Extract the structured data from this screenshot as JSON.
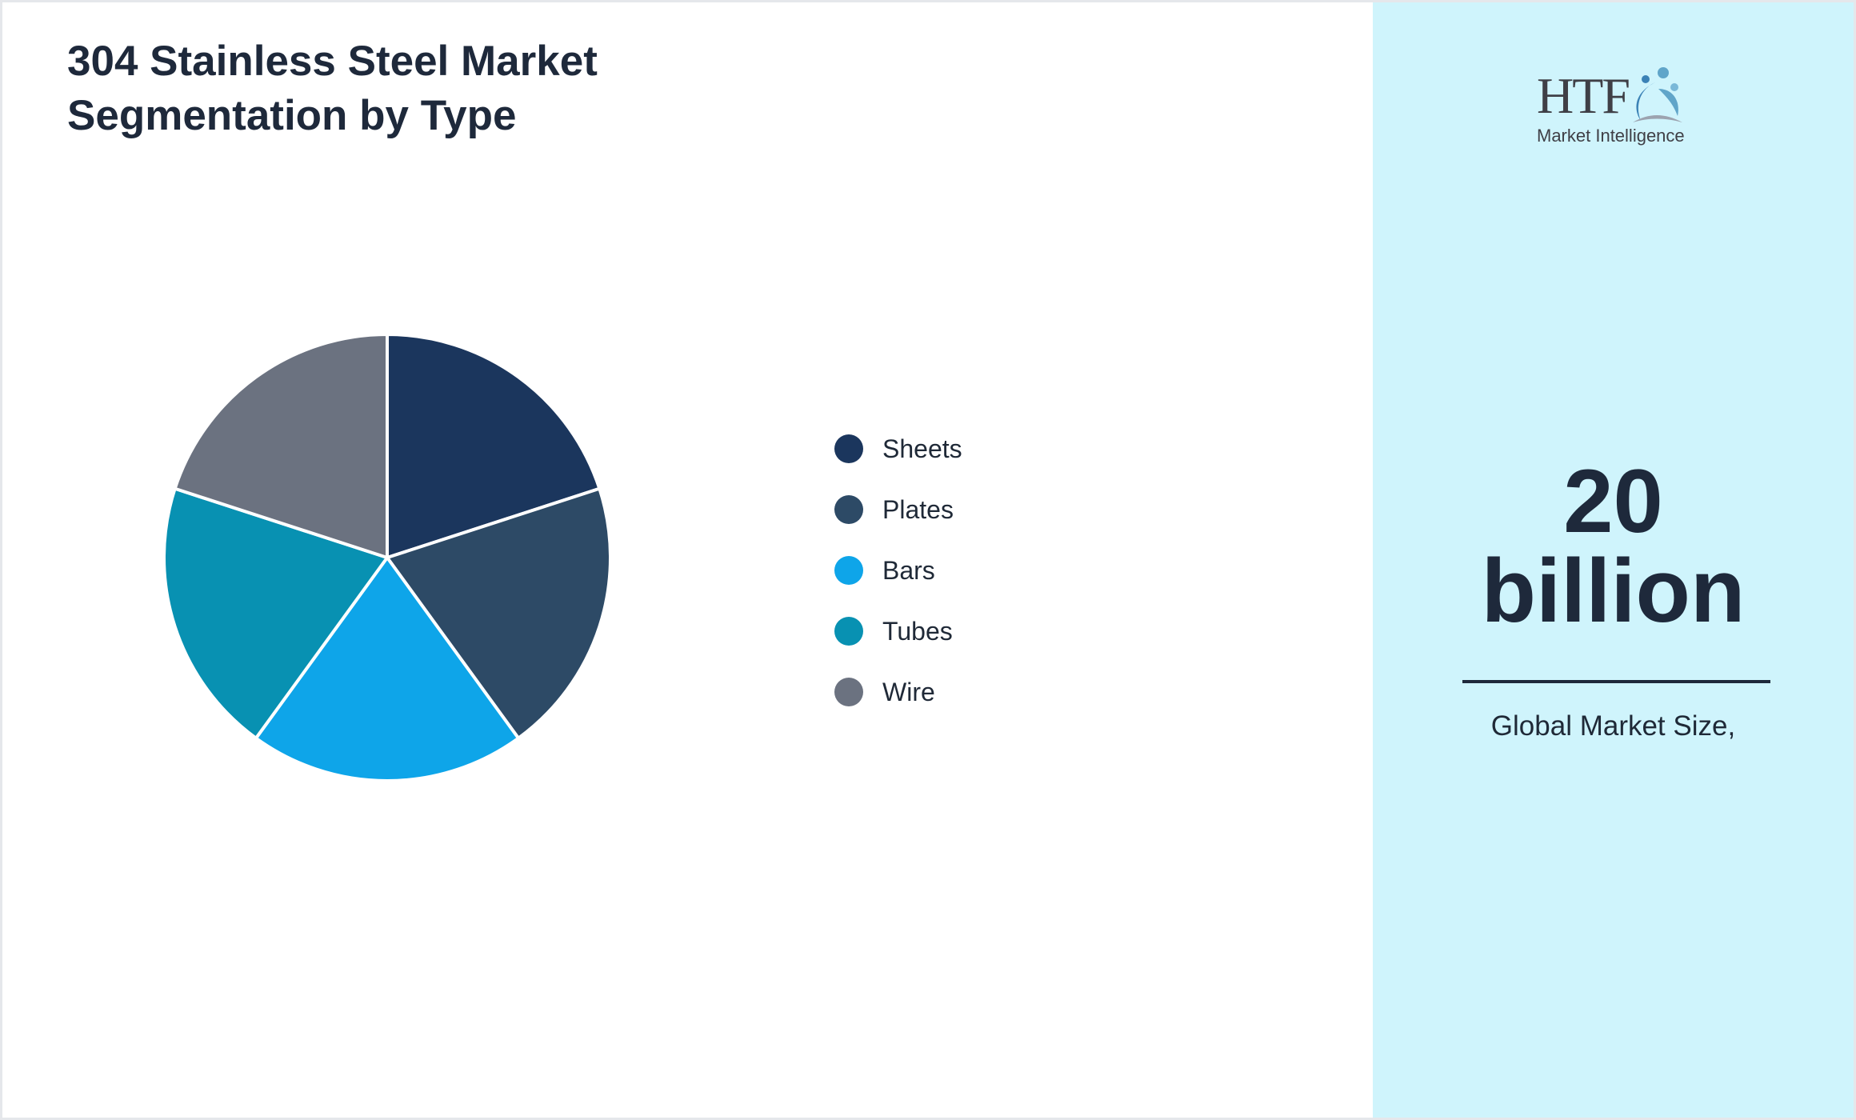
{
  "chart_data": {
    "type": "pie",
    "title": "304 Stainless Steel Market Segmentation by Type",
    "categories": [
      "Sheets",
      "Plates",
      "Bars",
      "Tubes",
      "Wire"
    ],
    "values": [
      20,
      20,
      20,
      20,
      20
    ],
    "colors": [
      "#1b365d",
      "#2d4a66",
      "#0ea5e9",
      "#0891b2",
      "#6b7280"
    ],
    "legend_position": "right"
  },
  "header": {
    "title_line1": "304 Stainless Steel Market",
    "title_line2": "Segmentation by Type"
  },
  "sidebar": {
    "logo_text": "HTF",
    "logo_subtext": "Market Intelligence",
    "value_number": "20",
    "value_unit": "billion",
    "caption": "Global Market Size,"
  }
}
